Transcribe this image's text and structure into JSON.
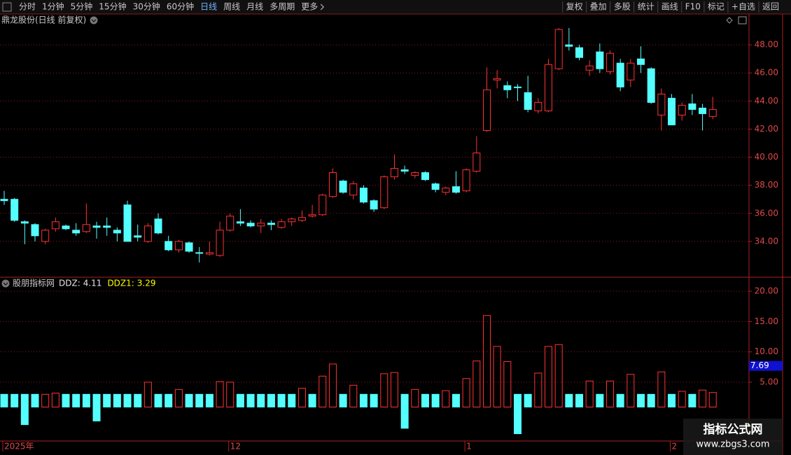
{
  "toolbar": {
    "left": [
      "分时",
      "1分钟",
      "5分钟",
      "15分钟",
      "30分钟",
      "60分钟",
      "日线",
      "周线",
      "月线",
      "多周期",
      "更多"
    ],
    "active_index": 6,
    "right": [
      "复权",
      "叠加",
      "多股",
      "统计",
      "画线",
      "F10",
      "标记",
      "+自选",
      "返回"
    ]
  },
  "chart_data": [
    {
      "type": "candlestick",
      "title": "鼎龙股份(日线 前复权)",
      "up_color": "#ff3232",
      "down_color": "#54ffff",
      "grid": true,
      "grid_color": "#8a1a1a",
      "categories": [
        "2025年",
        null,
        null,
        null,
        null,
        null,
        null,
        null,
        null,
        null,
        null,
        null,
        null,
        null,
        null,
        null,
        null,
        null,
        null,
        null,
        null,
        null,
        "12",
        null,
        null,
        null,
        null,
        null,
        null,
        null,
        null,
        null,
        null,
        null,
        null,
        null,
        null,
        null,
        null,
        null,
        null,
        null,
        null,
        null,
        null,
        "1",
        null,
        null,
        null,
        null,
        null,
        null,
        null,
        null,
        null,
        null,
        null,
        null,
        null,
        null,
        null,
        null,
        null,
        null,
        null,
        "2",
        null,
        null,
        null,
        null
      ],
      "open": [
        37.0,
        37.0,
        35.4,
        35.2,
        34.0,
        34.9,
        35.1,
        34.8,
        34.7,
        35.1,
        35.1,
        34.8,
        36.6,
        34.4,
        34.0,
        35.6,
        34.0,
        33.4,
        33.9,
        33.2,
        33.1,
        33.0,
        34.8,
        35.4,
        35.3,
        35.1,
        35.3,
        35.0,
        35.4,
        35.5,
        35.8,
        35.9,
        37.2,
        38.3,
        37.3,
        37.8,
        36.9,
        36.4,
        38.6,
        39.1,
        38.7,
        38.9,
        38.1,
        37.5,
        37.9,
        37.6,
        39.0,
        41.9,
        45.5,
        45.1,
        45.0,
        44.6,
        43.3,
        43.3,
        46.3,
        48.0,
        47.8,
        46.2,
        47.5,
        46.1,
        46.7,
        45.5,
        47.0,
        46.3,
        43.0,
        44.2,
        43.0,
        43.8,
        43.5,
        42.9
      ],
      "high": [
        37.6,
        37.1,
        35.5,
        35.3,
        34.9,
        35.7,
        35.2,
        35.3,
        36.7,
        35.4,
        35.7,
        35.0,
        36.9,
        35.2,
        35.3,
        36.0,
        34.4,
        34.1,
        34.0,
        33.6,
        34.0,
        35.4,
        36.0,
        36.3,
        35.5,
        35.6,
        35.5,
        35.6,
        35.7,
        36.2,
        36.6,
        37.4,
        39.2,
        38.4,
        38.3,
        38.0,
        37.0,
        38.7,
        40.2,
        39.4,
        39.0,
        39.0,
        38.2,
        37.9,
        39.0,
        39.2,
        41.5,
        46.4,
        46.2,
        45.4,
        45.2,
        45.8,
        44.2,
        47.0,
        49.2,
        49.2,
        48.0,
        46.9,
        48.1,
        47.6,
        47.0,
        47.0,
        47.9,
        46.4,
        44.9,
        44.5,
        43.9,
        44.5,
        43.8,
        44.3
      ],
      "low": [
        36.6,
        35.4,
        33.8,
        34.0,
        33.8,
        34.7,
        34.8,
        34.4,
        34.6,
        34.2,
        34.4,
        34.0,
        34.0,
        34.0,
        33.9,
        34.5,
        33.3,
        33.2,
        33.2,
        32.5,
        33.0,
        32.9,
        34.7,
        35.1,
        35.0,
        34.6,
        34.8,
        34.9,
        35.1,
        35.4,
        35.7,
        35.8,
        37.1,
        37.4,
        37.0,
        36.7,
        36.1,
        36.3,
        38.4,
        38.8,
        38.5,
        38.3,
        37.5,
        37.3,
        37.4,
        37.5,
        38.9,
        41.8,
        44.9,
        44.2,
        44.0,
        43.2,
        43.1,
        43.2,
        46.2,
        47.6,
        46.9,
        45.8,
        46.0,
        45.9,
        44.7,
        45.0,
        46.0,
        43.8,
        41.9,
        42.3,
        42.6,
        43.0,
        41.9,
        42.7
      ],
      "close": [
        36.9,
        35.5,
        35.3,
        34.4,
        34.8,
        35.4,
        34.9,
        34.6,
        35.2,
        35.0,
        35.0,
        34.6,
        34.0,
        34.3,
        35.1,
        34.6,
        33.4,
        34.0,
        33.3,
        33.2,
        33.2,
        34.8,
        35.8,
        35.3,
        35.1,
        35.3,
        35.2,
        35.4,
        35.6,
        35.7,
        35.9,
        37.3,
        38.9,
        37.5,
        38.1,
        36.8,
        36.3,
        38.6,
        39.2,
        39.0,
        38.9,
        38.4,
        37.7,
        37.8,
        37.5,
        39.1,
        40.3,
        44.8,
        45.6,
        44.8,
        45.0,
        43.4,
        43.9,
        46.6,
        49.1,
        47.9,
        47.1,
        46.5,
        46.3,
        47.4,
        45.0,
        46.7,
        46.6,
        43.9,
        44.5,
        42.3,
        43.7,
        43.4,
        43.1,
        43.4
      ],
      "ylim": [
        31.5,
        50.1
      ],
      "yticks": [
        {
          "value": 34,
          "label": "34.00"
        },
        {
          "value": 36,
          "label": "36.00"
        },
        {
          "value": 38,
          "label": "38.00"
        },
        {
          "value": 40,
          "label": "40.00"
        },
        {
          "value": 42,
          "label": "42.00"
        },
        {
          "value": 44,
          "label": "44.00"
        },
        {
          "value": 46,
          "label": "46.00"
        },
        {
          "value": 48,
          "label": "48.00"
        }
      ]
    },
    {
      "type": "range-bar",
      "title": "股朋指标网",
      "readouts": [
        {
          "name": "DDZ",
          "value": 4.11,
          "color": "#e6e6e6"
        },
        {
          "name": "DDZ1",
          "value": 3.29,
          "color": "#ffff00"
        }
      ],
      "up_color": "#ff3232",
      "down_color": "#54ffff",
      "grid": true,
      "grid_color": "#8a1a1a",
      "from": [
        3.0,
        3.0,
        3.0,
        3.0,
        0.9,
        0.9,
        3.0,
        3.0,
        3.0,
        3.0,
        3.0,
        3.0,
        3.0,
        3.0,
        0.9,
        3.0,
        3.0,
        0.9,
        3.0,
        3.0,
        3.0,
        0.9,
        0.9,
        3.0,
        3.0,
        3.0,
        3.0,
        3.0,
        3.0,
        0.9,
        3.0,
        0.9,
        0.9,
        3.0,
        0.9,
        3.0,
        3.0,
        0.9,
        0.9,
        3.0,
        0.9,
        3.0,
        3.0,
        0.9,
        3.0,
        0.9,
        0.9,
        0.9,
        0.9,
        0.9,
        3.0,
        3.0,
        0.9,
        0.9,
        0.9,
        3.0,
        3.0,
        0.9,
        3.0,
        0.9,
        3.0,
        0.9,
        3.0,
        3.0,
        0.9,
        3.0,
        0.9,
        3.0,
        0.9,
        0.9
      ],
      "to": [
        0.9,
        0.9,
        -2.0,
        0.9,
        3.0,
        3.2,
        0.9,
        0.9,
        0.9,
        -1.4,
        0.9,
        0.9,
        0.9,
        0.9,
        5.0,
        0.9,
        0.9,
        3.8,
        0.9,
        0.9,
        0.9,
        5.1,
        5.0,
        0.9,
        0.9,
        0.9,
        0.9,
        0.9,
        0.9,
        4.0,
        0.9,
        6.0,
        8.0,
        0.9,
        4.5,
        0.9,
        0.9,
        6.4,
        6.6,
        -2.6,
        3.8,
        0.9,
        0.9,
        3.6,
        0.9,
        5.6,
        8.5,
        16.0,
        10.9,
        8.4,
        -3.5,
        0.9,
        6.5,
        10.9,
        11.2,
        0.9,
        0.9,
        5.2,
        0.9,
        5.2,
        0.9,
        6.3,
        0.9,
        0.9,
        6.7,
        0.9,
        3.5,
        0.9,
        3.7,
        3.3
      ],
      "marker": {
        "value": 7.69,
        "color": "#1010d0"
      },
      "ylim": [
        -4.7,
        22.2
      ],
      "yticks": [
        {
          "value": 5,
          "label": "5.00"
        },
        {
          "value": 10,
          "label": "10.00"
        },
        {
          "value": 15,
          "label": "15.00"
        },
        {
          "value": 20,
          "label": "20.00"
        }
      ]
    }
  ],
  "watermark": {
    "title": "指标公式网",
    "url": "www.zbgs3.com"
  }
}
